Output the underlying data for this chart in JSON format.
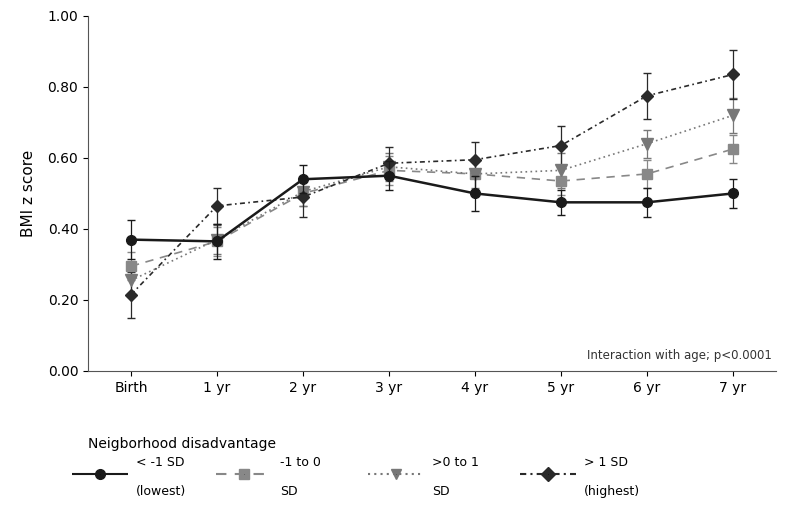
{
  "x_labels": [
    "Birth",
    "1 yr",
    "2 yr",
    "3 yr",
    "4 yr",
    "5 yr",
    "6 yr",
    "7 yr"
  ],
  "x_values": [
    0,
    1,
    2,
    3,
    4,
    5,
    6,
    7
  ],
  "series": [
    {
      "label_line1": "< -1 SD",
      "label_line2": "(lowest)",
      "y": [
        0.37,
        0.365,
        0.54,
        0.55,
        0.5,
        0.475,
        0.475,
        0.5
      ],
      "yerr": [
        0.055,
        0.05,
        0.04,
        0.04,
        0.05,
        0.035,
        0.04,
        0.04
      ],
      "color": "#1a1a1a",
      "linestyle": "solid",
      "marker": "o",
      "markersize": 7,
      "linewidth": 1.8,
      "zorder": 4
    },
    {
      "label_line1": "-1 to 0",
      "label_line2": "SD",
      "y": [
        0.295,
        0.365,
        0.5,
        0.565,
        0.555,
        0.535,
        0.555,
        0.625
      ],
      "yerr": [
        0.04,
        0.04,
        0.035,
        0.04,
        0.045,
        0.04,
        0.04,
        0.04
      ],
      "color": "#888888",
      "linestyle": "dashed",
      "marker": "s",
      "markersize": 7,
      "linewidth": 1.2,
      "zorder": 3
    },
    {
      "label_line1": ">0 to 1",
      "label_line2": "SD",
      "y": [
        0.255,
        0.37,
        0.505,
        0.575,
        0.555,
        0.565,
        0.64,
        0.72
      ],
      "yerr": [
        0.04,
        0.04,
        0.04,
        0.04,
        0.04,
        0.05,
        0.04,
        0.05
      ],
      "color": "#777777",
      "linestyle": "dotted",
      "marker": "v",
      "markersize": 8,
      "linewidth": 1.2,
      "zorder": 3
    },
    {
      "label_line1": "> 1 SD",
      "label_line2": "(highest)",
      "y": [
        0.215,
        0.465,
        0.49,
        0.585,
        0.595,
        0.635,
        0.775,
        0.835
      ],
      "yerr": [
        0.065,
        0.05,
        0.055,
        0.045,
        0.05,
        0.055,
        0.065,
        0.07
      ],
      "color": "#2a2a2a",
      "linestyle": "loosely_dotted",
      "marker": "D",
      "markersize": 6,
      "linewidth": 1.2,
      "zorder": 3
    }
  ],
  "ylabel": "BMI z score",
  "ylim": [
    0.0,
    1.0
  ],
  "yticks": [
    0.0,
    0.2,
    0.4,
    0.6,
    0.8,
    1.0
  ],
  "annotation": "Interaction with age; p<0.0001",
  "legend_title": "Neigborhood disadvantage",
  "background_color": "#ffffff",
  "figsize": [
    8.0,
    5.3
  ],
  "dpi": 100
}
